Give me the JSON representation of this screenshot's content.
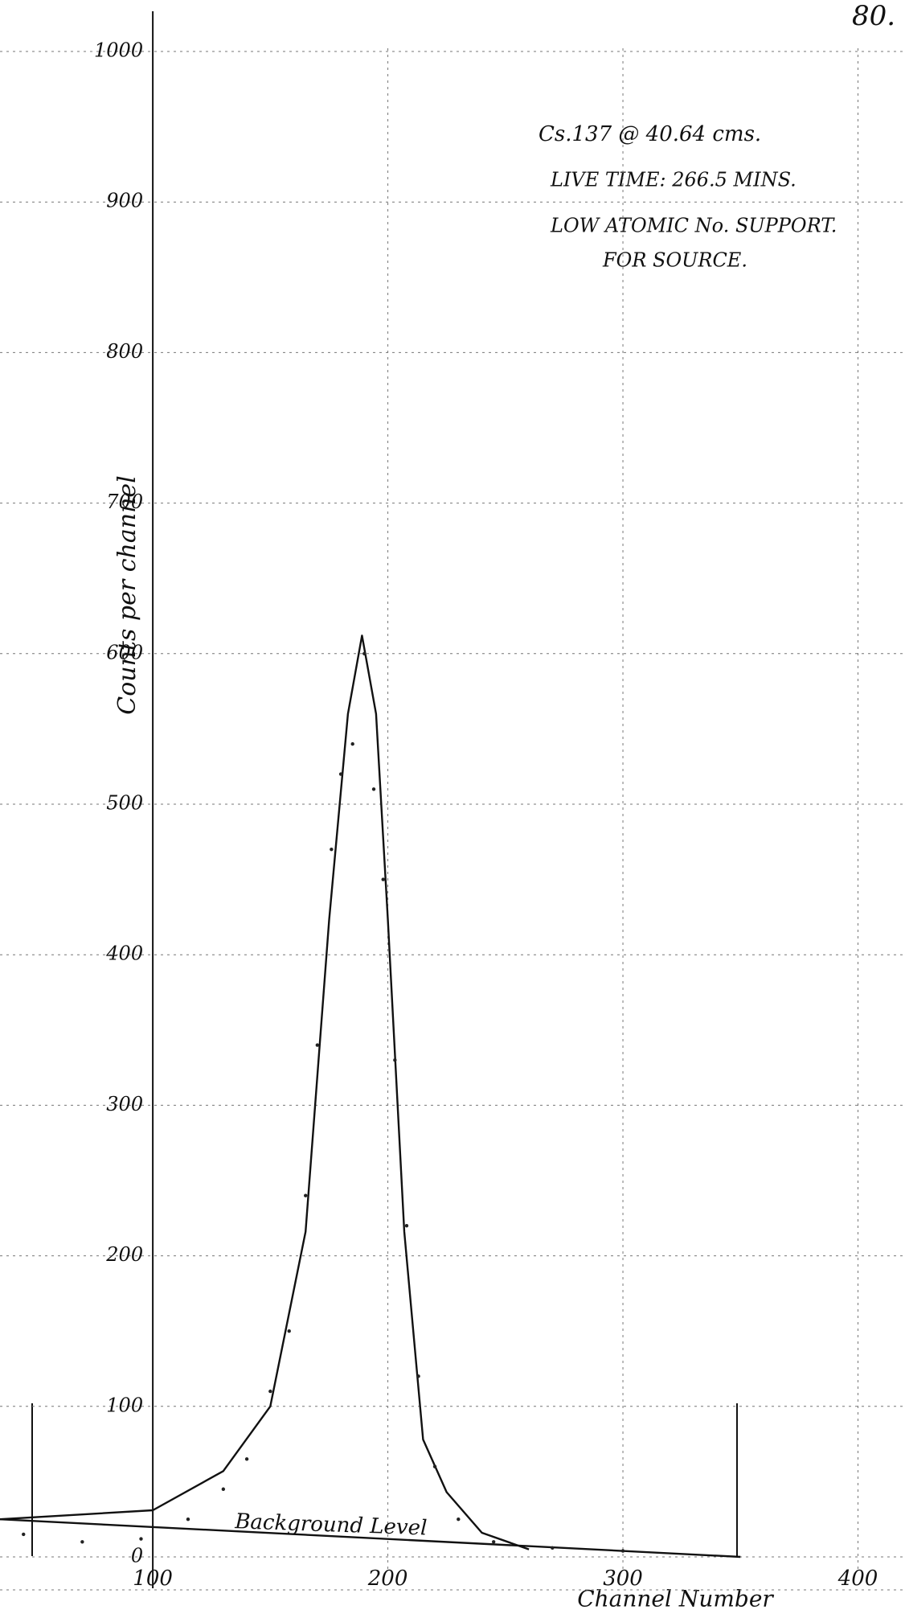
{
  "page_number": "80.",
  "chart_data": {
    "type": "line",
    "annotations": [
      "Cs.137 @ 40.64 cms.",
      "LIVE TIME: 266.5 MINS.",
      "LOW ATOMIC No. SUPPORT.",
      "FOR SOURCE."
    ],
    "y_label": "Counts per channel",
    "x_label": "Channel Number",
    "xlim": [
      35,
      420
    ],
    "ylim": [
      0,
      1000
    ],
    "xticks": [
      100,
      200,
      300,
      400
    ],
    "yticks": [
      0,
      100,
      200,
      300,
      400,
      500,
      600,
      700,
      800,
      900,
      1000
    ],
    "grid": true,
    "series": [
      {
        "style": "curve",
        "color": "#111111",
        "x": [
          35,
          100,
          130,
          150,
          165,
          175,
          183,
          189,
          195,
          200,
          207,
          215,
          225,
          240,
          260
        ],
        "values": [
          25,
          31,
          57,
          100,
          216,
          423,
          560,
          612,
          560,
          423,
          216,
          78,
          43,
          16,
          5
        ]
      },
      {
        "name": "Background Level",
        "style": "curve",
        "color": "#111111",
        "x": [
          35,
          350
        ],
        "values": [
          25,
          0
        ]
      },
      {
        "style": "dots",
        "color": "#222222",
        "x": [
          45,
          70,
          95,
          115,
          130,
          140,
          150,
          158,
          165,
          170,
          176,
          180,
          185,
          190,
          194,
          198,
          203,
          208,
          213,
          220,
          230,
          245,
          270,
          300
        ],
        "values": [
          15,
          10,
          12,
          25,
          45,
          65,
          110,
          150,
          240,
          340,
          470,
          520,
          540,
          600,
          510,
          450,
          330,
          220,
          120,
          60,
          25,
          10,
          6,
          4
        ]
      }
    ]
  }
}
